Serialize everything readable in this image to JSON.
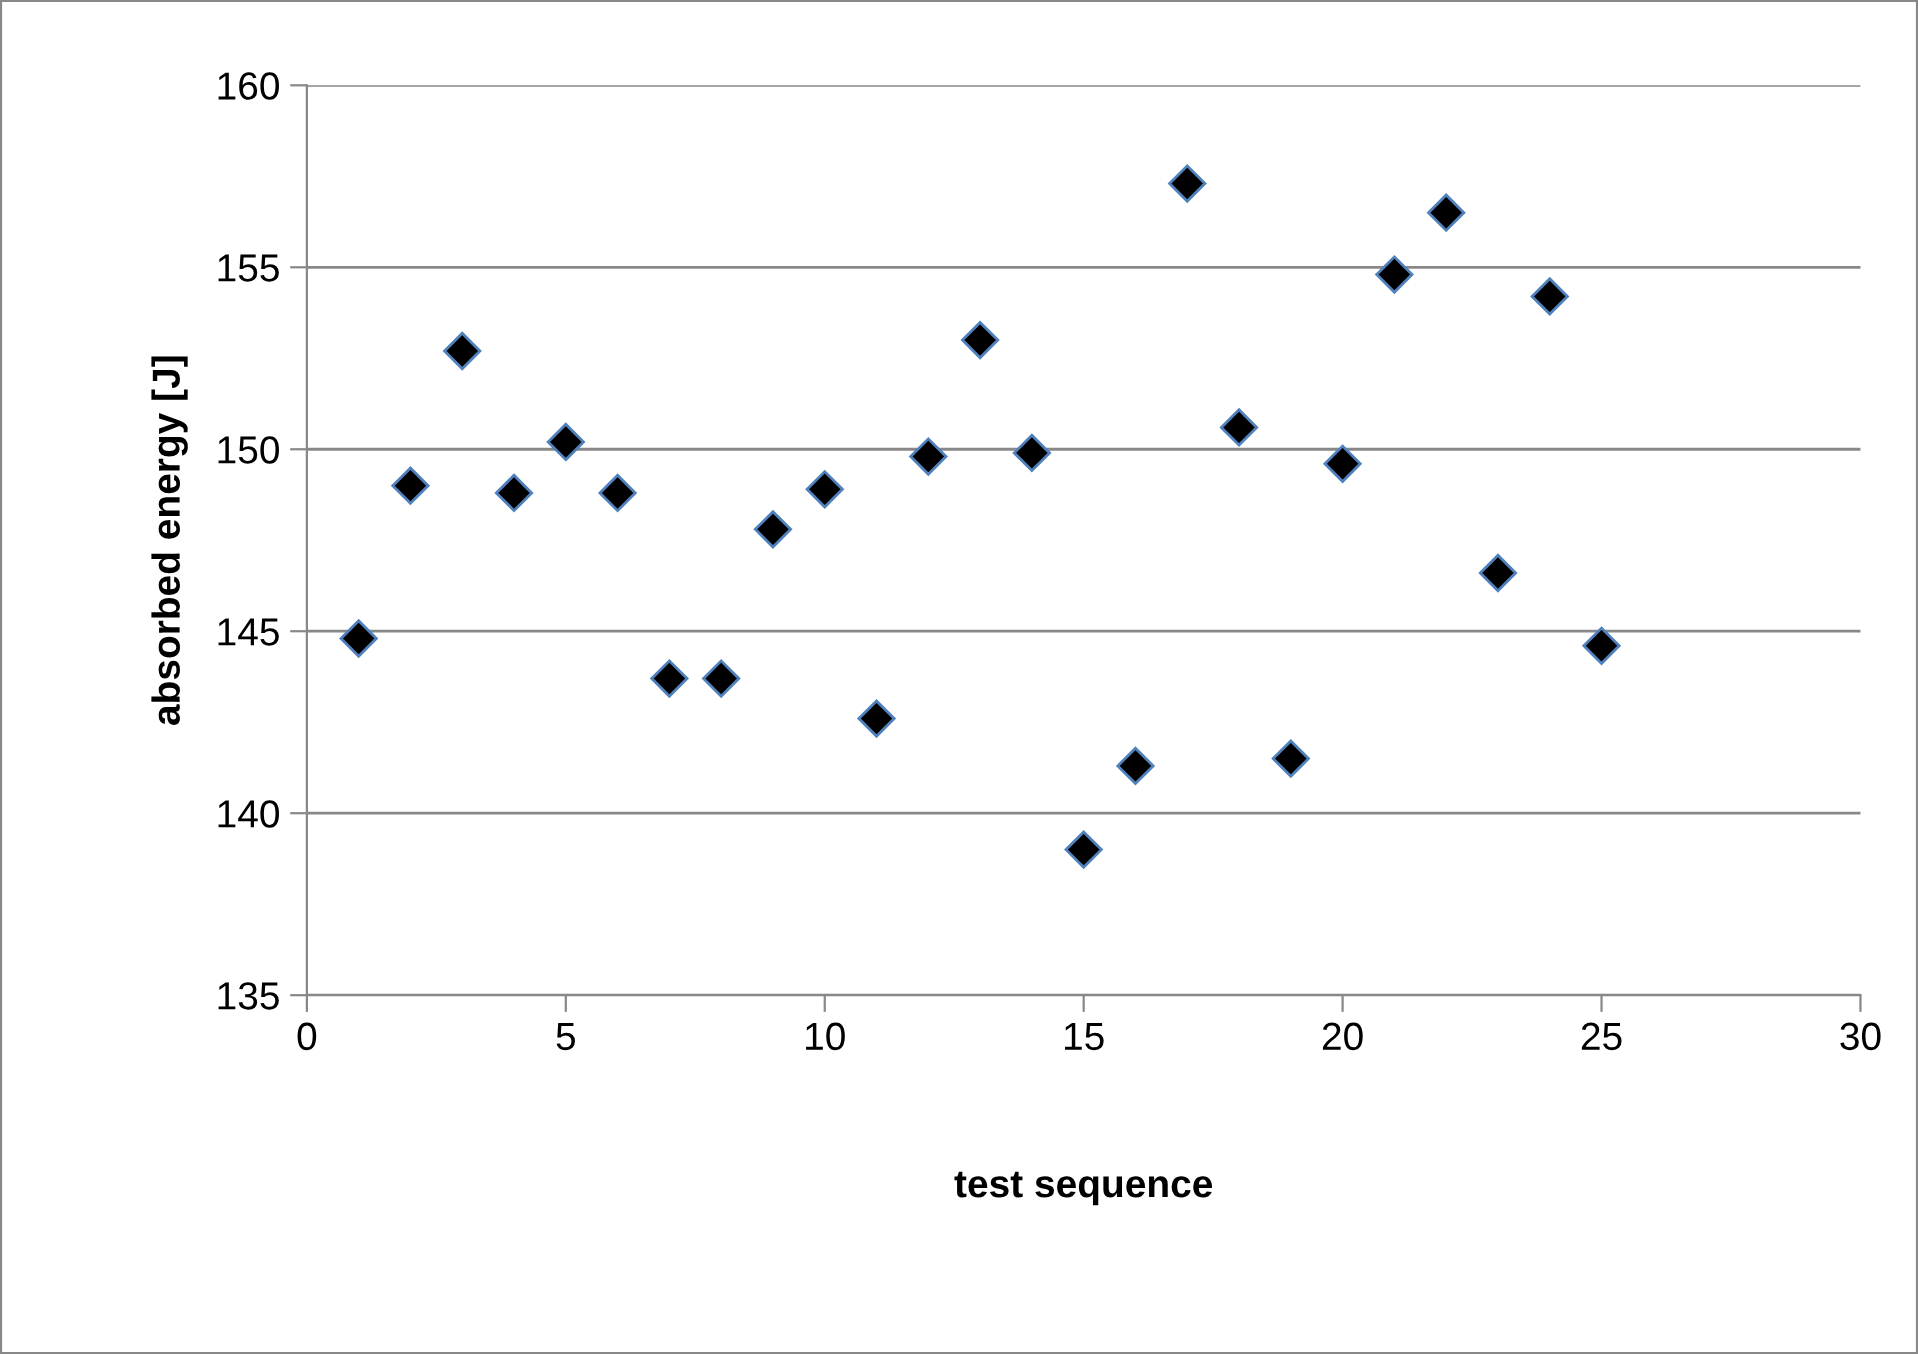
{
  "chart_data": {
    "type": "scatter",
    "xlabel": "test sequence",
    "ylabel": "absorbed energy [J]",
    "x": [
      1,
      2,
      3,
      4,
      5,
      6,
      7,
      8,
      9,
      10,
      11,
      12,
      13,
      14,
      15,
      16,
      17,
      18,
      19,
      20,
      21,
      22,
      23,
      24,
      25
    ],
    "series": [
      {
        "color": "#000000",
        "values": [
          144.8,
          149.0,
          152.7,
          148.8,
          150.2,
          148.8,
          143.7,
          143.7,
          147.8,
          148.9,
          142.6,
          149.8,
          153.0,
          149.9,
          139.0,
          141.3,
          157.3,
          150.6,
          141.5,
          149.6,
          154.8,
          156.5,
          146.6,
          154.2,
          144.6
        ]
      }
    ],
    "xlim": [
      0,
      30
    ],
    "xticks": [
      0,
      5,
      10,
      15,
      20,
      25,
      30
    ],
    "ylim": [
      135,
      160
    ],
    "yticks": [
      135,
      140,
      145,
      150,
      155,
      160
    ],
    "grid": "y",
    "marker": "diamond",
    "legend": false
  }
}
